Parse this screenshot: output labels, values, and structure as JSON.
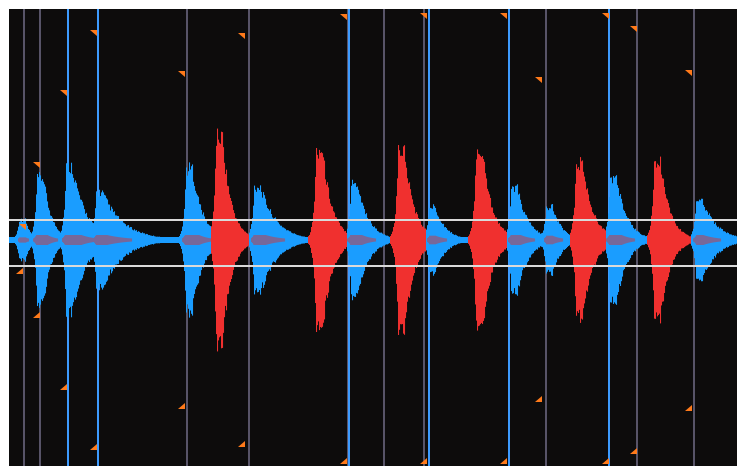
{
  "waveform_view": {
    "background_color": "#0d0c0c",
    "colors": {
      "waveform_primary": "#1a9dff",
      "waveform_secondary": "#f0302f",
      "waveform_secondary_edge": "#c0404a",
      "beat_marker": "#3d9bff",
      "grid_line": "#8a87a8",
      "marker_triangle": "#ff7a1a",
      "center_band_line": "#dadada"
    },
    "icons": {
      "marker": "orange-triangle-icon",
      "region": "center-band-icon"
    }
  }
}
